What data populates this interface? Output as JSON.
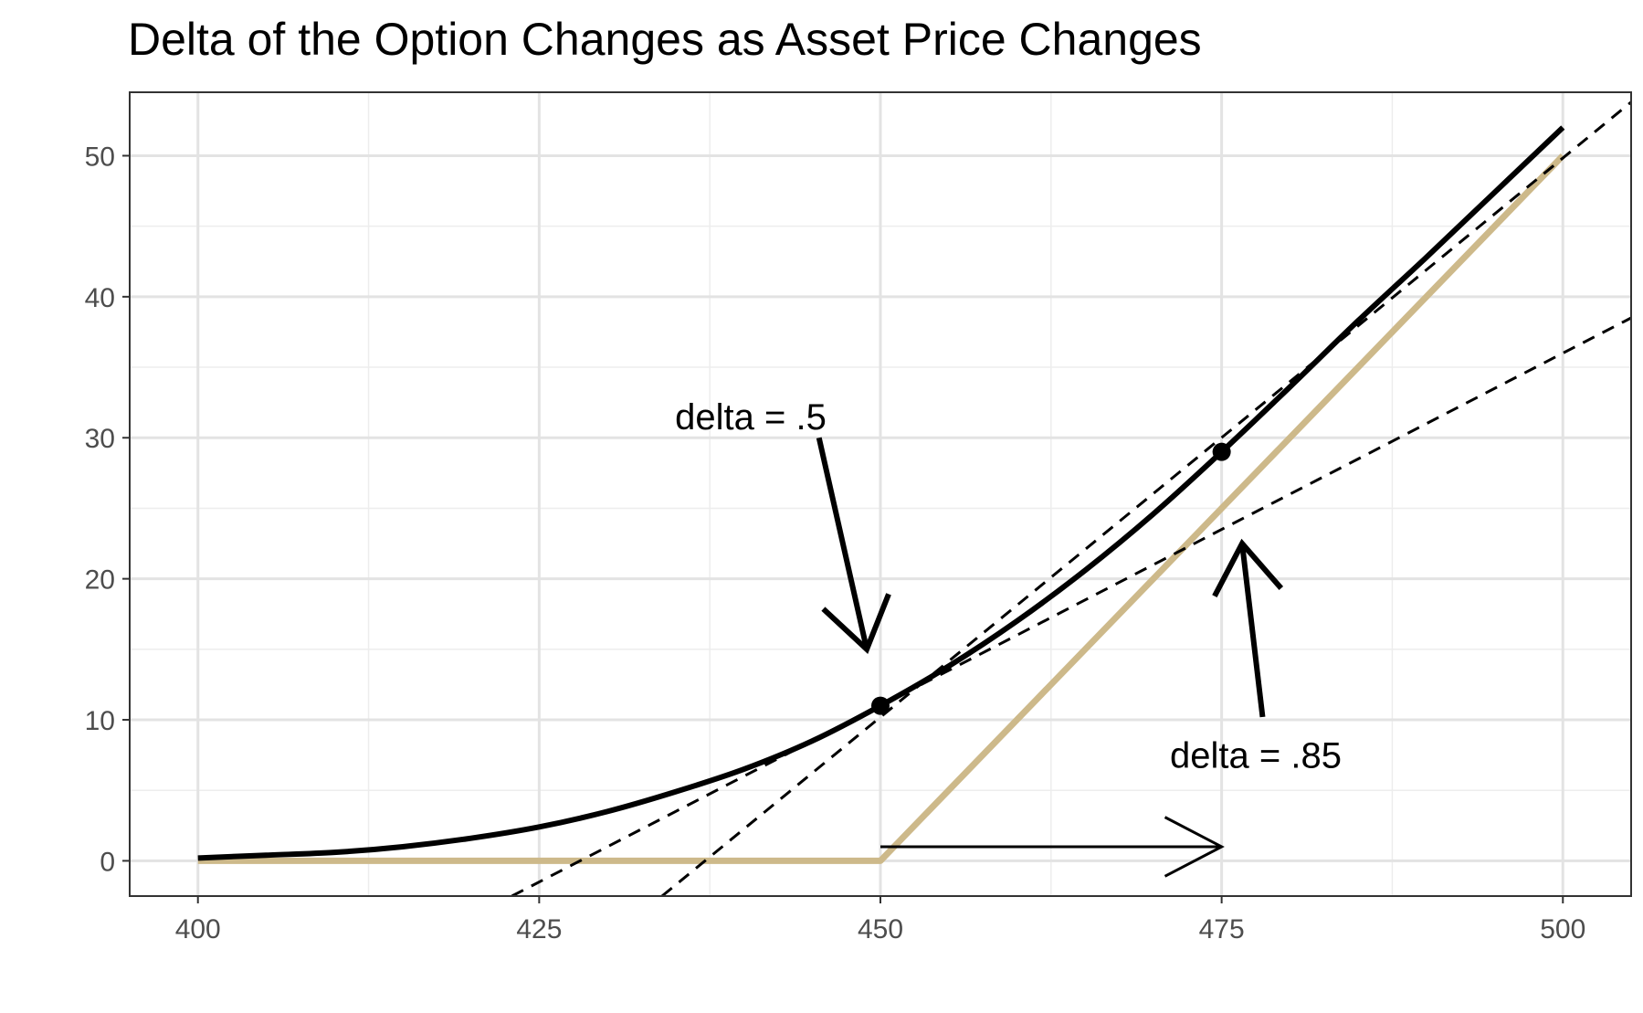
{
  "chart_data": {
    "type": "line",
    "title": "Delta of the Option Changes as Asset Price Changes",
    "xlabel": "",
    "ylabel": "",
    "xlim": [
      395,
      505
    ],
    "ylim": [
      -2.5,
      54.5
    ],
    "x_ticks": [
      "400",
      "425",
      "450",
      "475",
      "500"
    ],
    "y_ticks": [
      "0",
      "10",
      "20",
      "30",
      "40",
      "50"
    ],
    "grid": true,
    "legend": "none",
    "series": [
      {
        "style": "solid-black",
        "color": "#000000",
        "x": [
          400,
          405,
          410,
          415,
          420,
          425,
          430,
          435,
          440,
          445,
          450,
          455,
          460,
          465,
          470,
          475,
          480,
          485,
          490,
          495,
          500
        ],
        "y": [
          0.2,
          0.4,
          0.6,
          1.0,
          1.6,
          2.4,
          3.5,
          4.9,
          6.5,
          8.5,
          11.0,
          13.8,
          17.0,
          20.6,
          24.6,
          29.0,
          33.6,
          38.3,
          42.8,
          47.4,
          52.0
        ]
      },
      {
        "style": "payoff-tan",
        "color": "#cdb98a",
        "x": [
          400,
          450,
          500
        ],
        "y": [
          0,
          0,
          50
        ]
      },
      {
        "style": "dashed-tangent",
        "color": "#000000",
        "x": [
          423,
          505
        ],
        "y": [
          -2.5,
          38.5
        ]
      },
      {
        "style": "dashed-tangent",
        "color": "#000000",
        "x": [
          434,
          505
        ],
        "y": [
          -2.5,
          53.8
        ]
      }
    ],
    "points": [
      {
        "x": 450,
        "y": 11.0
      },
      {
        "x": 475,
        "y": 29.0
      }
    ],
    "annotations": [
      {
        "text": "delta = .5",
        "x": 440.5,
        "y": 31.5
      },
      {
        "text": "delta = .85",
        "x": 477.5,
        "y": 7.5
      }
    ],
    "arrows": [
      {
        "from": [
          445.5,
          30
        ],
        "to": [
          449,
          15
        ]
      },
      {
        "from": [
          478,
          10.2
        ],
        "to": [
          476.5,
          22.5
        ]
      },
      {
        "from": [
          450,
          1.0
        ],
        "to": [
          475,
          1.0
        ]
      }
    ]
  }
}
